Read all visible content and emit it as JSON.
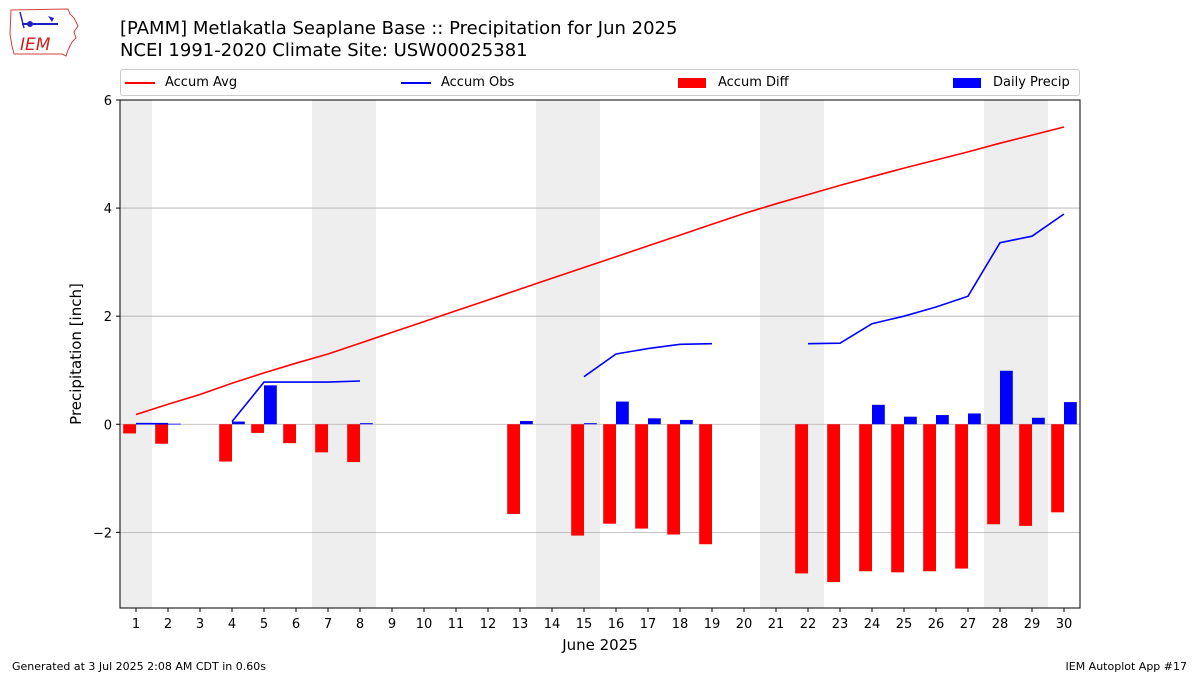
{
  "logo": {
    "text": "IEM"
  },
  "title": {
    "line1": "[PAMM] Metlakatla Seaplane Base :: Precipitation for Jun 2025",
    "line2": "NCEI 1991-2020 Climate Site: USW00025381"
  },
  "legend": [
    {
      "label": "Accum Avg",
      "kind": "line",
      "color": "#ff0000"
    },
    {
      "label": "Accum Obs",
      "kind": "line",
      "color": "#0000ff"
    },
    {
      "label": "Accum Diff",
      "kind": "bar",
      "color": "#ff0000"
    },
    {
      "label": "Daily Precip",
      "kind": "bar",
      "color": "#0000ff"
    }
  ],
  "chart_data": {
    "type": "bar",
    "xlabel": "June 2025",
    "ylabel": "Precipitation [inch]",
    "xlim": [
      0.5,
      30.5
    ],
    "ylim": [
      -3.4,
      6.0
    ],
    "yticks": [
      -2,
      0,
      2,
      4,
      6
    ],
    "ytick_labels": [
      "−2",
      "0",
      "2",
      "4",
      "6"
    ],
    "x": [
      1,
      2,
      3,
      4,
      5,
      6,
      7,
      8,
      9,
      10,
      11,
      12,
      13,
      14,
      15,
      16,
      17,
      18,
      19,
      20,
      21,
      22,
      23,
      24,
      25,
      26,
      27,
      28,
      29,
      30
    ],
    "weekend_bands": [
      [
        0.5,
        1.5
      ],
      [
        6.5,
        8.5
      ],
      [
        13.5,
        15.5
      ],
      [
        20.5,
        22.5
      ],
      [
        27.5,
        29.5
      ]
    ],
    "grid": "horizontal",
    "series": [
      {
        "name": "Accum Avg",
        "kind": "line",
        "color": "#ff0000",
        "values": [
          0.18,
          0.37,
          0.55,
          0.76,
          0.95,
          1.13,
          1.3,
          1.5,
          1.7,
          1.9,
          2.1,
          2.3,
          2.5,
          2.7,
          2.9,
          3.1,
          3.3,
          3.5,
          3.7,
          3.9,
          4.08,
          4.25,
          4.42,
          4.58,
          4.74,
          4.89,
          5.04,
          5.2,
          5.35,
          5.5
        ]
      },
      {
        "name": "Accum Obs",
        "kind": "line",
        "color": "#0000ff",
        "values": [
          0.01,
          0.01,
          null,
          0.05,
          0.78,
          0.78,
          0.78,
          0.8,
          null,
          null,
          null,
          null,
          null,
          null,
          0.88,
          1.3,
          1.4,
          1.48,
          1.49,
          null,
          null,
          1.49,
          1.5,
          1.86,
          2.0,
          2.17,
          2.37,
          3.36,
          3.48,
          3.89
        ]
      },
      {
        "name": "Accum Diff",
        "kind": "bar",
        "color": "#ff0000",
        "values": [
          -0.17,
          -0.36,
          null,
          -0.69,
          -0.16,
          -0.35,
          -0.52,
          -0.7,
          null,
          null,
          null,
          null,
          -1.66,
          null,
          -2.06,
          -1.84,
          -1.93,
          -2.04,
          -2.22,
          null,
          null,
          -2.76,
          -2.92,
          -2.72,
          -2.74,
          -2.72,
          -2.67,
          -1.85,
          -1.88,
          -1.63
        ]
      },
      {
        "name": "Daily Precip",
        "kind": "bar",
        "color": "#0000ff",
        "values": [
          0.01,
          0.01,
          null,
          0.05,
          0.72,
          null,
          null,
          0.02,
          null,
          null,
          null,
          null,
          0.06,
          null,
          0.02,
          0.42,
          0.11,
          0.08,
          null,
          null,
          null,
          null,
          null,
          0.36,
          0.14,
          0.17,
          0.2,
          0.99,
          0.12,
          0.41
        ]
      }
    ]
  },
  "footer": {
    "left": "Generated at 3 Jul 2025 2:08 AM CDT in 0.60s",
    "right": "IEM Autoplot App #17"
  }
}
